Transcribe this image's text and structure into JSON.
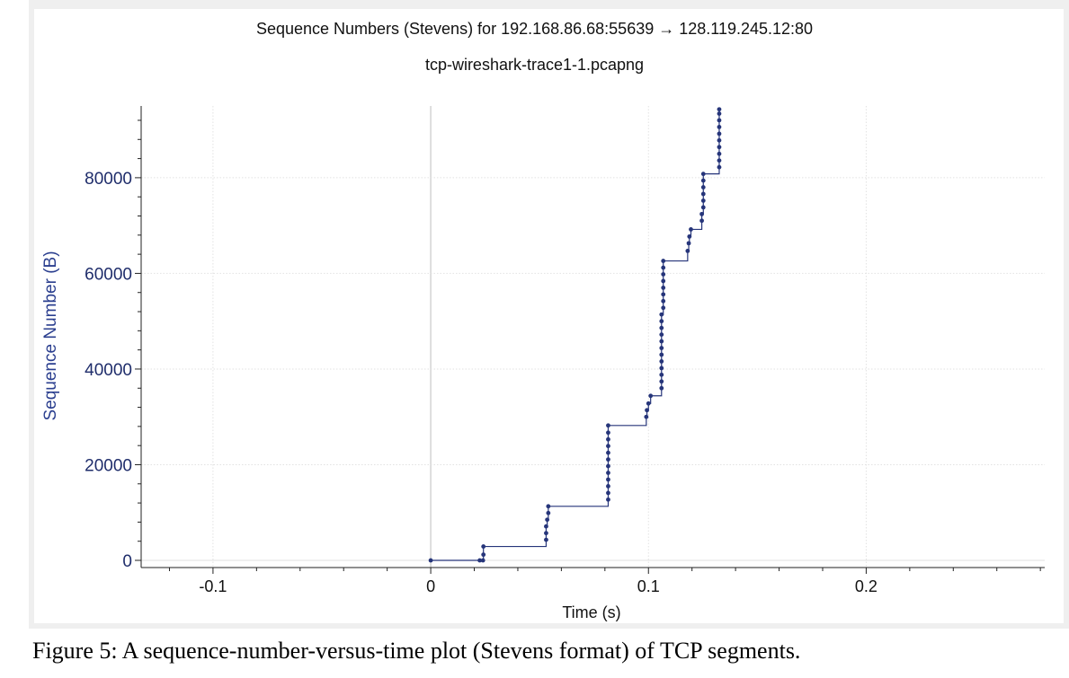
{
  "figure": {
    "caption": "Figure 5:  A sequence-number-versus-time plot (Stevens format) of TCP segments."
  },
  "chart_data": {
    "type": "scatter",
    "title": "Sequence Numbers (Stevens) for 192.168.86.68:55639 → 128.119.245.12:80",
    "subtitle": "tcp-wireshark-trace1-1.pcapng",
    "xlabel": "Time (s)",
    "ylabel": "Sequence Number (B)",
    "xlim": [
      -0.133,
      0.282
    ],
    "ylim": [
      -1500,
      95000
    ],
    "xticks": [
      -0.1,
      0,
      0.1,
      0.2
    ],
    "xtick_labels": [
      "-0.1",
      "0",
      "0.1",
      "0.2"
    ],
    "yticks": [
      0,
      20000,
      40000,
      60000,
      80000
    ],
    "ytick_labels": [
      "0",
      "20000",
      "40000",
      "60000",
      "80000"
    ],
    "grid": true,
    "color": "#26357a",
    "series": [
      {
        "name": "",
        "step_line": true,
        "points": [
          [
            0.0,
            0
          ],
          [
            0.0225,
            0
          ],
          [
            0.024,
            0
          ],
          [
            0.0242,
            1200
          ],
          [
            0.0242,
            2900
          ],
          [
            0.053,
            4300
          ],
          [
            0.053,
            5700
          ],
          [
            0.053,
            7100
          ],
          [
            0.0535,
            8500
          ],
          [
            0.054,
            9900
          ],
          [
            0.054,
            11300
          ],
          [
            0.0815,
            12700
          ],
          [
            0.0815,
            14100
          ],
          [
            0.0815,
            15500
          ],
          [
            0.0815,
            16900
          ],
          [
            0.0815,
            18300
          ],
          [
            0.0815,
            19700
          ],
          [
            0.0815,
            21100
          ],
          [
            0.0815,
            22500
          ],
          [
            0.0815,
            23900
          ],
          [
            0.0815,
            25300
          ],
          [
            0.0815,
            26700
          ],
          [
            0.0815,
            28200
          ],
          [
            0.099,
            30000
          ],
          [
            0.0993,
            31400
          ],
          [
            0.1,
            32800
          ],
          [
            0.101,
            34400
          ],
          [
            0.106,
            36000
          ],
          [
            0.106,
            37400
          ],
          [
            0.106,
            38800
          ],
          [
            0.106,
            40200
          ],
          [
            0.106,
            41600
          ],
          [
            0.106,
            43000
          ],
          [
            0.106,
            44400
          ],
          [
            0.106,
            45800
          ],
          [
            0.106,
            47200
          ],
          [
            0.106,
            48600
          ],
          [
            0.106,
            50000
          ],
          [
            0.106,
            51400
          ],
          [
            0.1068,
            52800
          ],
          [
            0.1068,
            54200
          ],
          [
            0.1068,
            55600
          ],
          [
            0.1068,
            57000
          ],
          [
            0.1068,
            58400
          ],
          [
            0.1068,
            59800
          ],
          [
            0.1068,
            61200
          ],
          [
            0.1068,
            62600
          ],
          [
            0.118,
            64700
          ],
          [
            0.1185,
            66300
          ],
          [
            0.1188,
            67700
          ],
          [
            0.1195,
            69200
          ],
          [
            0.1245,
            71000
          ],
          [
            0.1245,
            72400
          ],
          [
            0.1252,
            73800
          ],
          [
            0.1252,
            75200
          ],
          [
            0.1252,
            76600
          ],
          [
            0.1252,
            78000
          ],
          [
            0.1252,
            79400
          ],
          [
            0.1252,
            80800
          ],
          [
            0.1325,
            82200
          ],
          [
            0.1325,
            83600
          ],
          [
            0.1325,
            85000
          ],
          [
            0.1325,
            86400
          ],
          [
            0.1325,
            87800
          ],
          [
            0.1325,
            89200
          ],
          [
            0.1325,
            90600
          ],
          [
            0.1325,
            92000
          ],
          [
            0.1325,
            93400
          ],
          [
            0.1325,
            94300
          ]
        ]
      }
    ]
  }
}
